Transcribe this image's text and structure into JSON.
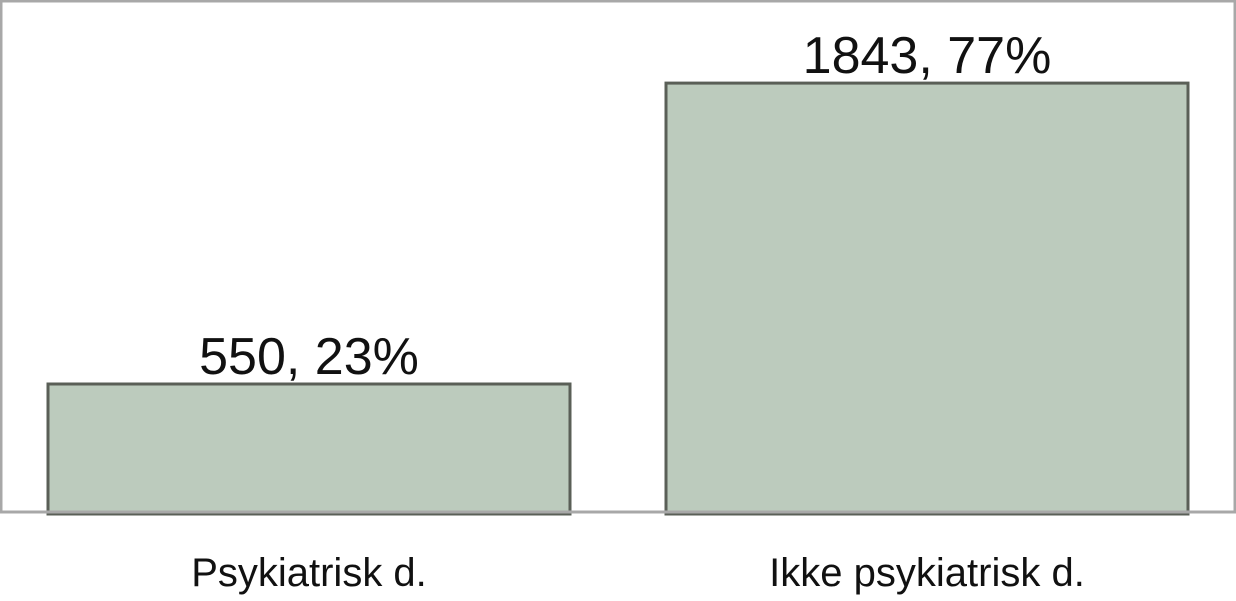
{
  "chart_data": {
    "type": "bar",
    "categories": [
      "Psykiatrisk d.",
      "Ikke psykiatrisk d."
    ],
    "values": [
      550,
      1843
    ],
    "data_labels": [
      "550, 23%",
      "1843, 77%"
    ],
    "title": "",
    "xlabel": "",
    "ylabel": "",
    "ylim": [
      0,
      2200
    ],
    "grid": false,
    "legend": "none"
  },
  "colors": {
    "bar_fill": "#bccbbd",
    "bar_stroke": "#5a5f57",
    "plot_border": "#a8a8a8",
    "text": "#111111"
  }
}
